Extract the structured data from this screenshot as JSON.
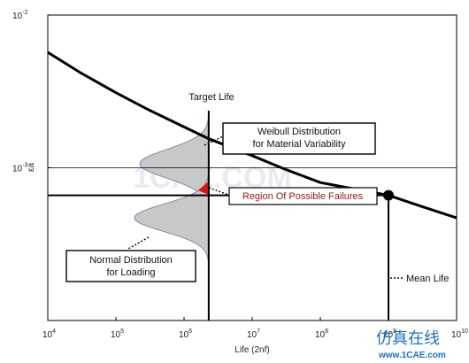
{
  "chart_data": {
    "type": "line",
    "xlabel": "Life (2nf)",
    "ylabel": "εa",
    "x_scale": "log",
    "y_scale": "log",
    "xlim": [
      10000,
      10000000000
    ],
    "ylim": [
      0.0001,
      0.01
    ],
    "x_ticks": [
      {
        "base": "10",
        "exp": "4"
      },
      {
        "base": "10",
        "exp": "5"
      },
      {
        "base": "10",
        "exp": "6"
      },
      {
        "base": "10",
        "exp": "7"
      },
      {
        "base": "10",
        "exp": "8"
      },
      {
        "base": "10",
        "exp": "9"
      },
      {
        "base": "10",
        "exp": "10"
      }
    ],
    "y_ticks": [
      {
        "base": "10",
        "exp": "-2",
        "value": 0.01
      },
      {
        "base": "10",
        "exp": "-3",
        "value": 0.001
      }
    ],
    "series": [
      {
        "points": [
          [
            10000,
            0.0057
          ],
          [
            30000,
            0.0042
          ],
          [
            100000,
            0.0031
          ],
          [
            300000,
            0.0024
          ],
          [
            1000000,
            0.00185
          ],
          [
            2300000,
            0.00155
          ],
          [
            10000000,
            0.0012
          ],
          [
            30000000,
            0.00098
          ],
          [
            100000000,
            0.0008
          ],
          [
            1000000000,
            0.00066
          ],
          [
            3000000000,
            0.00056
          ],
          [
            10000000000,
            0.00047
          ]
        ]
      }
    ],
    "reference_lines": {
      "target_life_x": 2300000,
      "mean_life_x": 1000000000,
      "mean_life_y": 0.00066,
      "horizontal_y": 0.001
    },
    "annotations": [
      "Target Life",
      "Weibull Distribution\nfor Material Variability",
      "Region Of Possible Failures",
      "Normal Distribution\nfor Loading",
      "Mean Life"
    ],
    "grid": false
  },
  "watermark": {
    "cn_text": "仿真在线",
    "site_text": "www.1CAE.com",
    "center_text": "1CAE.COM"
  },
  "colors": {
    "curve": "#000000",
    "distribution_fill": "#c8c8c8",
    "failure_region": "#e01010",
    "watermark_blue": "#1a6fc2"
  }
}
